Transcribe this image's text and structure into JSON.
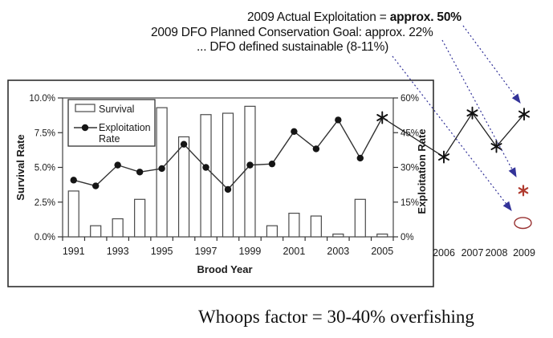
{
  "annotations": {
    "line1_prefix": "2009 Actual Exploitation = ",
    "line1_bold": "approx. 50%",
    "line2": "2009 DFO Planned Conservation Goal: approx. 22%",
    "line3": "... DFO defined sustainable (8-11%)"
  },
  "footer": {
    "text": "Whoops factor = 30-40% overfishing"
  },
  "colors": {
    "arrow_blue": "#333399",
    "goal_red": "#b03a2e",
    "ellipse_red": "#993333",
    "ink": "#1a1a1a",
    "bar_stroke": "#4a4a4a",
    "line_stroke": "#333333"
  },
  "chart_data": {
    "type": "bar+line",
    "title": "",
    "xlabel": "Brood Year",
    "grid": false,
    "legend": {
      "items": [
        "Survival",
        "Exploitation Rate"
      ],
      "position": "top-left-inside"
    },
    "left_axis": {
      "label": "Survival Rate",
      "range": [
        0,
        10
      ],
      "ticks": [
        0,
        2.5,
        5,
        7.5,
        10
      ],
      "tick_labels": [
        "0.0%",
        "2.5%",
        "5.0%",
        "7.5%",
        "10.0%"
      ]
    },
    "right_axis": {
      "label": "Exploitation Rate",
      "range": [
        0,
        60
      ],
      "ticks": [
        0,
        15,
        30,
        45,
        60
      ],
      "tick_labels": [
        "0%",
        "15%",
        "30%",
        "45%",
        "60%"
      ]
    },
    "categories": [
      1991,
      1992,
      1993,
      1994,
      1995,
      1996,
      1997,
      1998,
      1999,
      2000,
      2001,
      2002,
      2003,
      2004,
      2005
    ],
    "x_labeled_years": [
      1991,
      1993,
      1995,
      1997,
      1999,
      2001,
      2003,
      2005
    ],
    "series": [
      {
        "name": "Survival",
        "type": "bar",
        "axis": "left",
        "values": [
          3.3,
          0.8,
          1.3,
          2.7,
          9.3,
          7.2,
          8.8,
          8.9,
          9.4,
          0.8,
          1.7,
          1.5,
          0.2,
          2.7,
          0.2
        ]
      },
      {
        "name": "Exploitation Rate",
        "type": "line",
        "axis": "right",
        "marker": "dot",
        "last_point_marker": "asterisk",
        "values": [
          24.5,
          22,
          31,
          28,
          29.5,
          40,
          30,
          20.5,
          31,
          31.5,
          45.5,
          38,
          50.5,
          34,
          51.5
        ]
      }
    ],
    "extension_series": {
      "name": "Exploitation Rate (recent)",
      "axis": "right",
      "marker": "asterisk",
      "categories": [
        "2006",
        "2007",
        "2008",
        "2009"
      ],
      "values": [
        34.5,
        53.5,
        39,
        53
      ]
    },
    "reference_markers": [
      {
        "id": "goal-2009",
        "symbol": "asterisk",
        "axis": "right",
        "value": 20
      },
      {
        "id": "sustainable-2009",
        "symbol": "ellipse",
        "axis": "right",
        "value": 6
      }
    ]
  }
}
